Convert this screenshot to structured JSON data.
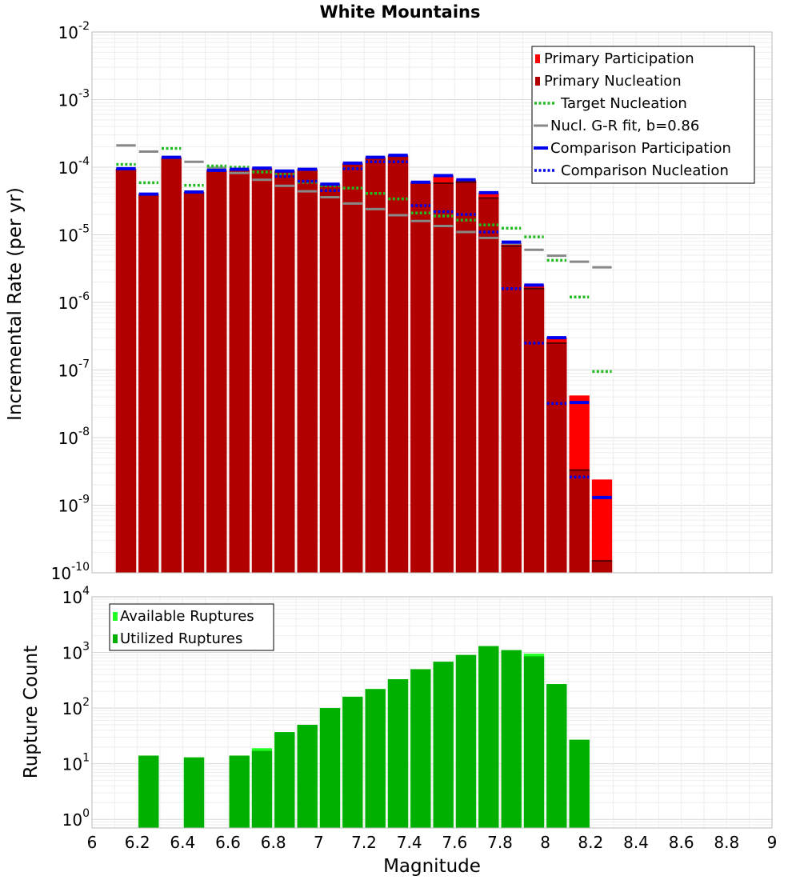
{
  "chart_data": [
    {
      "type": "bar",
      "title": "White Mountains",
      "xlabel": "",
      "ylabel": "Incremental Rate (per yr)",
      "ylog": true,
      "xlim": [
        6,
        9
      ],
      "ylim": [
        1e-10,
        0.01
      ],
      "y_ticks": [
        {
          "base": "10",
          "exp": "-10"
        },
        {
          "base": "10",
          "exp": "-9"
        },
        {
          "base": "10",
          "exp": "-8"
        },
        {
          "base": "10",
          "exp": "-7"
        },
        {
          "base": "10",
          "exp": "-6"
        },
        {
          "base": "10",
          "exp": "-5"
        },
        {
          "base": "10",
          "exp": "-4"
        },
        {
          "base": "10",
          "exp": "-3"
        },
        {
          "base": "10",
          "exp": "-2"
        }
      ],
      "grid": true,
      "legend_position": "top-right",
      "x": [
        6.15,
        6.25,
        6.35,
        6.45,
        6.55,
        6.65,
        6.75,
        6.85,
        6.95,
        7.05,
        7.15,
        7.25,
        7.35,
        7.45,
        7.55,
        7.65,
        7.75,
        7.85,
        7.95,
        8.05,
        8.15,
        8.25
      ],
      "series": [
        {
          "name": "Primary Participation",
          "color": "#ff0000",
          "style": "bar",
          "values": [
            9.5e-05,
            4e-05,
            0.00014,
            4.3e-05,
            9e-05,
            9.3e-05,
            9.7e-05,
            8.8e-05,
            9.3e-05,
            5.6e-05,
            0.000115,
            0.00014,
            0.00015,
            6e-05,
            7.5e-05,
            6.5e-05,
            4.2e-05,
            7.5e-06,
            1.8e-06,
            3e-07,
            4.2e-08,
            2.4e-09
          ]
        },
        {
          "name": "Primary Nucleation",
          "color": "#b20000",
          "style": "bar",
          "values": [
            9.5e-05,
            4e-05,
            0.00014,
            4.3e-05,
            9e-05,
            9.3e-05,
            9.7e-05,
            8.8e-05,
            9.3e-05,
            5.6e-05,
            0.000115,
            0.00014,
            0.00015,
            6e-05,
            5.8e-05,
            6e-05,
            3.5e-05,
            6.8e-06,
            1.6e-06,
            2.5e-07,
            3.3e-09,
            1.5e-10
          ]
        },
        {
          "name": "Target Nucleation",
          "color": "#22bb22",
          "style": "dotted",
          "values": [
            0.00011,
            5.9e-05,
            0.00019,
            5.4e-05,
            0.000104,
            0.0001,
            8.5e-05,
            7.8e-05,
            6e-05,
            5.3e-05,
            4.9e-05,
            4.1e-05,
            3.4e-05,
            2.1e-05,
            1.9e-05,
            1.65e-05,
            1.4e-05,
            1.25e-05,
            9.3e-06,
            4.2e-06,
            1.2e-06,
            9.5e-08
          ]
        },
        {
          "name": "Nucl. G-R fit, b=0.86",
          "color": "#888888",
          "style": "solid",
          "values": [
            0.00021,
            0.00017,
            null,
            0.00012,
            9.8e-05,
            8.2e-05,
            6.5e-05,
            5.3e-05,
            4.4e-05,
            3.6e-05,
            2.9e-05,
            2.4e-05,
            1.95e-05,
            1.6e-05,
            1.35e-05,
            1.1e-05,
            9e-06,
            7.4e-06,
            6e-06,
            4.9e-06,
            4e-06,
            3.3e-06
          ]
        },
        {
          "name": "Comparison Participation",
          "color": "#0000ee",
          "style": "solid-thick",
          "values": [
            9.5e-05,
            4e-05,
            0.00014,
            4.3e-05,
            9e-05,
            9.3e-05,
            9.7e-05,
            8.8e-05,
            9.3e-05,
            5.6e-05,
            0.000115,
            0.00014,
            0.00015,
            6e-05,
            7.5e-05,
            6.5e-05,
            4.2e-05,
            7.8e-06,
            1.8e-06,
            3e-07,
            3.3e-08,
            1.3e-09
          ]
        },
        {
          "name": "Comparison Nucleation",
          "color": "#0000ee",
          "style": "dotted",
          "values": [
            null,
            null,
            null,
            null,
            null,
            null,
            null,
            7.3e-05,
            6.2e-05,
            4.5e-05,
            9.5e-05,
            0.00012,
            0.00012,
            2.7e-05,
            2.2e-05,
            2e-05,
            1.1e-05,
            1.6e-06,
            2.5e-07,
            3.2e-08,
            2.6e-09,
            null
          ]
        }
      ]
    },
    {
      "type": "bar",
      "title": "",
      "xlabel": "Magnitude",
      "ylabel": "Rupture Count",
      "ylog": true,
      "xlim": [
        6,
        9
      ],
      "ylim": [
        0.7,
        10000
      ],
      "x_ticks": [
        "6",
        "6.2",
        "6.4",
        "6.6",
        "6.8",
        "7",
        "7.2",
        "7.4",
        "7.6",
        "7.8",
        "8",
        "8.2",
        "8.4",
        "8.6",
        "8.8",
        "9"
      ],
      "y_ticks": [
        {
          "base": "10",
          "exp": "0",
          "value": 1
        },
        {
          "base": "10",
          "exp": "1",
          "value": 10
        },
        {
          "base": "10",
          "exp": "2",
          "value": 100
        },
        {
          "base": "10",
          "exp": "3",
          "value": 1000
        },
        {
          "base": "10",
          "exp": "4",
          "value": 10000
        }
      ],
      "grid": true,
      "legend_position": "top-left",
      "x": [
        6.15,
        6.25,
        6.35,
        6.45,
        6.55,
        6.65,
        6.75,
        6.85,
        6.95,
        7.05,
        7.15,
        7.25,
        7.35,
        7.45,
        7.55,
        7.65,
        7.75,
        7.85,
        7.95,
        8.05,
        8.15,
        8.25
      ],
      "series": [
        {
          "name": "Available Ruptures",
          "color": "#22ff22",
          "values": [
            null,
            14,
            null,
            13,
            null,
            14,
            19,
            37,
            50,
            100,
            160,
            220,
            330,
            500,
            680,
            900,
            1300,
            1100,
            950,
            270,
            27,
            null
          ]
        },
        {
          "name": "Utilized Ruptures",
          "color": "#00b000",
          "values": [
            null,
            14,
            null,
            13,
            null,
            14,
            17,
            37,
            50,
            100,
            160,
            220,
            330,
            500,
            680,
            900,
            1300,
            1100,
            850,
            270,
            27,
            null
          ]
        }
      ]
    }
  ]
}
